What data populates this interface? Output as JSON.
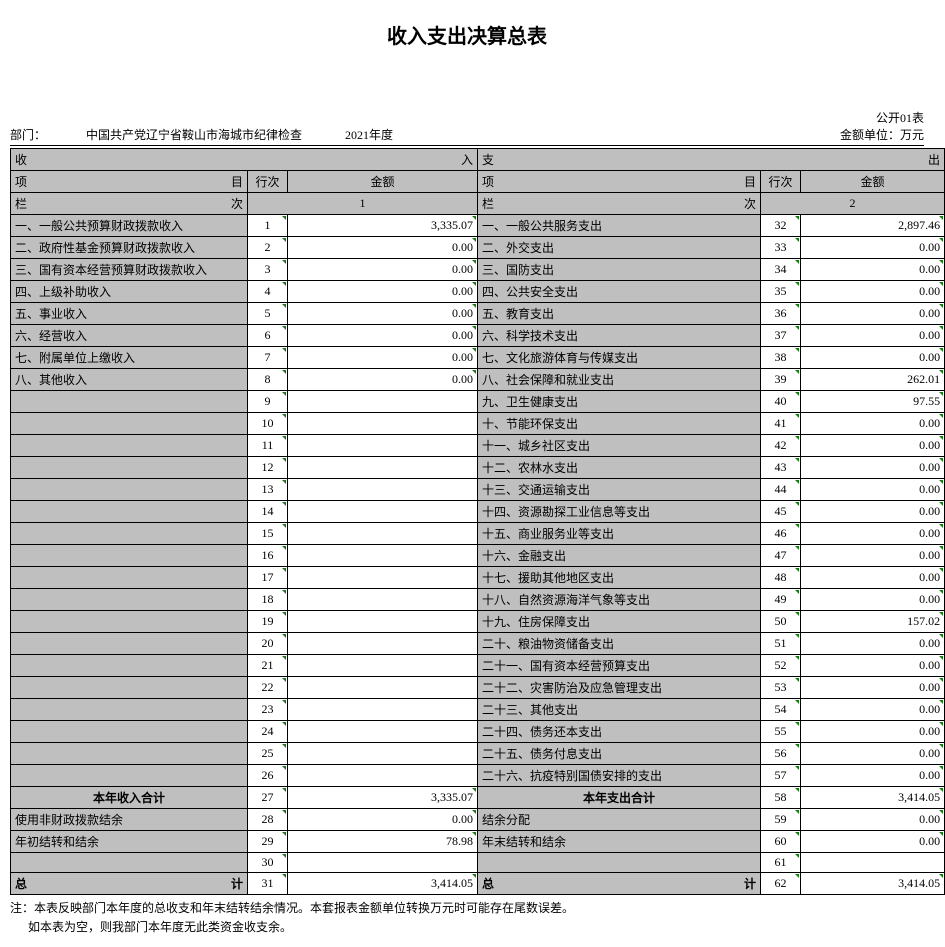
{
  "title": "收入支出决算总表",
  "tableNum": "公开01表",
  "department": "中国共产党辽宁省鞍山市海城市纪律检查",
  "year": "2021年度",
  "unit": "金额单位：万元",
  "deptLabel": "部门：",
  "headers": {
    "income": "收",
    "incomeEnd": "入",
    "expense": "支",
    "expenseEnd": "出",
    "item": "项",
    "mu": "目",
    "line": "行次",
    "amount": "金额",
    "lan": "栏",
    "ci": "次",
    "col1": "1",
    "col2": "2"
  },
  "left": {
    "rows": [
      {
        "label": "一、一般公共预算财政拨款收入",
        "line": "1",
        "amt": "3,335.07"
      },
      {
        "label": "二、政府性基金预算财政拨款收入",
        "line": "2",
        "amt": "0.00"
      },
      {
        "label": "三、国有资本经营预算财政拨款收入",
        "line": "3",
        "amt": "0.00"
      },
      {
        "label": "四、上级补助收入",
        "line": "4",
        "amt": "0.00"
      },
      {
        "label": "五、事业收入",
        "line": "5",
        "amt": "0.00"
      },
      {
        "label": "六、经营收入",
        "line": "6",
        "amt": "0.00"
      },
      {
        "label": "七、附属单位上缴收入",
        "line": "7",
        "amt": "0.00"
      },
      {
        "label": "八、其他收入",
        "line": "8",
        "amt": "0.00"
      },
      {
        "label": "",
        "line": "9",
        "amt": ""
      },
      {
        "label": "",
        "line": "10",
        "amt": ""
      },
      {
        "label": "",
        "line": "11",
        "amt": ""
      },
      {
        "label": "",
        "line": "12",
        "amt": ""
      },
      {
        "label": "",
        "line": "13",
        "amt": ""
      },
      {
        "label": "",
        "line": "14",
        "amt": ""
      },
      {
        "label": "",
        "line": "15",
        "amt": ""
      },
      {
        "label": "",
        "line": "16",
        "amt": ""
      },
      {
        "label": "",
        "line": "17",
        "amt": ""
      },
      {
        "label": "",
        "line": "18",
        "amt": ""
      },
      {
        "label": "",
        "line": "19",
        "amt": ""
      },
      {
        "label": "",
        "line": "20",
        "amt": ""
      },
      {
        "label": "",
        "line": "21",
        "amt": ""
      },
      {
        "label": "",
        "line": "22",
        "amt": ""
      },
      {
        "label": "",
        "line": "23",
        "amt": ""
      },
      {
        "label": "",
        "line": "24",
        "amt": ""
      },
      {
        "label": "",
        "line": "25",
        "amt": ""
      },
      {
        "label": "",
        "line": "26",
        "amt": ""
      }
    ],
    "subtotal": {
      "label": "本年收入合计",
      "line": "27",
      "amt": "3,335.07"
    },
    "extra": [
      {
        "label": "使用非财政拨款结余",
        "line": "28",
        "amt": "0.00"
      },
      {
        "label": "年初结转和结余",
        "line": "29",
        "amt": "78.98"
      },
      {
        "label": "",
        "line": "30",
        "amt": ""
      }
    ],
    "total": {
      "l": "总",
      "r": "计",
      "line": "31",
      "amt": "3,414.05"
    }
  },
  "right": {
    "rows": [
      {
        "label": "一、一般公共服务支出",
        "line": "32",
        "amt": "2,897.46"
      },
      {
        "label": "二、外交支出",
        "line": "33",
        "amt": "0.00"
      },
      {
        "label": "三、国防支出",
        "line": "34",
        "amt": "0.00"
      },
      {
        "label": "四、公共安全支出",
        "line": "35",
        "amt": "0.00"
      },
      {
        "label": "五、教育支出",
        "line": "36",
        "amt": "0.00"
      },
      {
        "label": "六、科学技术支出",
        "line": "37",
        "amt": "0.00"
      },
      {
        "label": "七、文化旅游体育与传媒支出",
        "line": "38",
        "amt": "0.00"
      },
      {
        "label": "八、社会保障和就业支出",
        "line": "39",
        "amt": "262.01"
      },
      {
        "label": "九、卫生健康支出",
        "line": "40",
        "amt": "97.55"
      },
      {
        "label": "十、节能环保支出",
        "line": "41",
        "amt": "0.00"
      },
      {
        "label": "十一、城乡社区支出",
        "line": "42",
        "amt": "0.00"
      },
      {
        "label": "十二、农林水支出",
        "line": "43",
        "amt": "0.00"
      },
      {
        "label": "十三、交通运输支出",
        "line": "44",
        "amt": "0.00"
      },
      {
        "label": "十四、资源勘探工业信息等支出",
        "line": "45",
        "amt": "0.00"
      },
      {
        "label": "十五、商业服务业等支出",
        "line": "46",
        "amt": "0.00"
      },
      {
        "label": "十六、金融支出",
        "line": "47",
        "amt": "0.00"
      },
      {
        "label": "十七、援助其他地区支出",
        "line": "48",
        "amt": "0.00"
      },
      {
        "label": "十八、自然资源海洋气象等支出",
        "line": "49",
        "amt": "0.00"
      },
      {
        "label": "十九、住房保障支出",
        "line": "50",
        "amt": "157.02"
      },
      {
        "label": "二十、粮油物资储备支出",
        "line": "51",
        "amt": "0.00"
      },
      {
        "label": "二十一、国有资本经营预算支出",
        "line": "52",
        "amt": "0.00"
      },
      {
        "label": "二十二、灾害防治及应急管理支出",
        "line": "53",
        "amt": "0.00"
      },
      {
        "label": "二十三、其他支出",
        "line": "54",
        "amt": "0.00"
      },
      {
        "label": "二十四、债务还本支出",
        "line": "55",
        "amt": "0.00"
      },
      {
        "label": "二十五、债务付息支出",
        "line": "56",
        "amt": "0.00"
      },
      {
        "label": "二十六、抗疫特别国债安排的支出",
        "line": "57",
        "amt": "0.00"
      }
    ],
    "subtotal": {
      "label": "本年支出合计",
      "line": "58",
      "amt": "3,414.05"
    },
    "extra": [
      {
        "label": "结余分配",
        "line": "59",
        "amt": "0.00"
      },
      {
        "label": "年末结转和结余",
        "line": "60",
        "amt": "0.00"
      },
      {
        "label": "",
        "line": "61",
        "amt": ""
      }
    ],
    "total": {
      "l": "总",
      "r": "计",
      "line": "62",
      "amt": "3,414.05"
    }
  },
  "notes": {
    "p1": "注：本表反映部门本年度的总收支和年末结转结余情况。本套报表金额单位转换万元时可能存在尾数误差。",
    "p2": "如本表为空，则我部门本年度无此类资金收支余。"
  },
  "style": {
    "cellBg": "#bfbfbf",
    "border": "#000000",
    "cornerColor": "#1a7a1a"
  }
}
